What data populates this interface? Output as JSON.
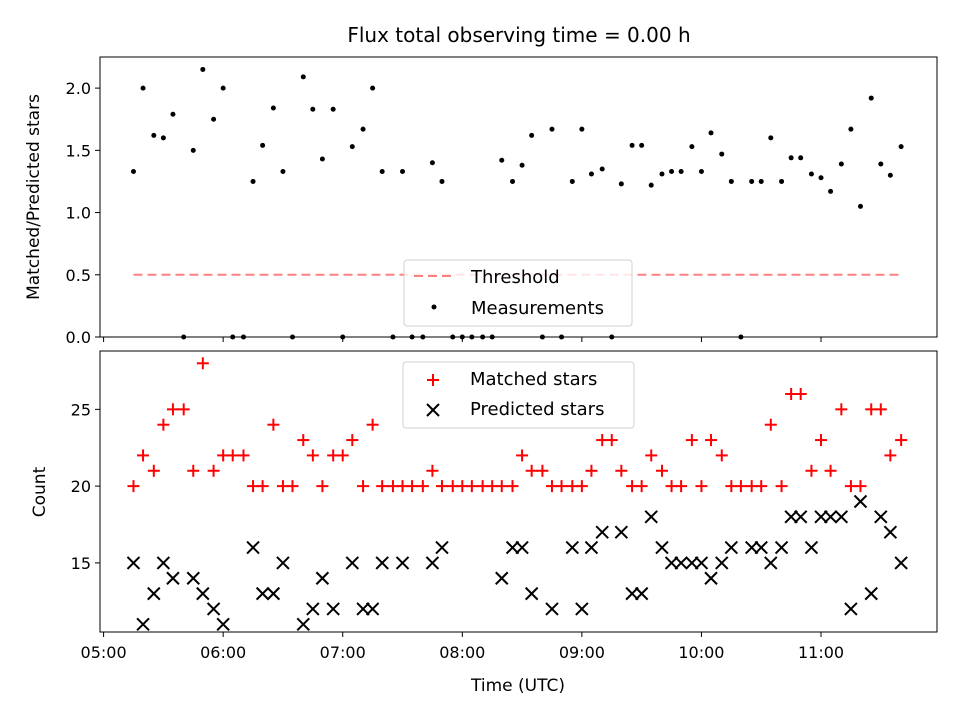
{
  "chart_data": {
    "type": "scatter",
    "title": "Flux total observing time = 0.00 h",
    "xlabel": "Time (UTC)",
    "x_ticks": [
      "05:00",
      "06:00",
      "07:00",
      "08:00",
      "09:00",
      "10:00",
      "11:00"
    ],
    "top": {
      "ylabel": "Matched/Predicted stars",
      "ylim": [
        0,
        2.25
      ],
      "y_ticks": [
        "0.0",
        "0.5",
        "1.0",
        "1.5",
        "2.0"
      ],
      "legend": [
        "Threshold",
        "Measurements"
      ],
      "legend_loc": "lower center",
      "threshold": 0.5,
      "threshold_color": "#ff8080",
      "x": [
        5.25,
        5.33,
        5.42,
        5.5,
        5.58,
        5.67,
        5.75,
        5.83,
        5.92,
        6.0,
        6.08,
        6.17,
        6.25,
        6.33,
        6.42,
        6.5,
        6.58,
        6.67,
        6.75,
        6.83,
        6.92,
        7.0,
        7.08,
        7.17,
        7.25,
        7.33,
        7.42,
        7.5,
        7.58,
        7.67,
        7.75,
        7.83,
        7.92,
        8.0,
        8.08,
        8.17,
        8.25,
        8.33,
        8.42,
        8.5,
        8.58,
        8.67,
        8.75,
        8.83,
        8.92,
        9.0,
        9.08,
        9.17,
        9.25,
        9.33,
        9.42,
        9.5,
        9.58,
        9.67,
        9.75,
        9.83,
        9.92,
        10.0,
        10.08,
        10.17,
        10.25,
        10.33,
        10.42,
        10.5,
        10.58,
        10.67,
        10.75,
        10.83,
        10.92,
        11.0,
        11.08,
        11.17,
        11.25,
        11.33,
        11.42,
        11.5,
        11.58,
        11.67
      ],
      "values": [
        1.33,
        2.0,
        1.62,
        1.6,
        1.79,
        0.0,
        1.5,
        2.15,
        1.75,
        2.0,
        0.0,
        0.0,
        1.25,
        1.54,
        1.84,
        1.33,
        0.0,
        2.09,
        1.83,
        1.43,
        1.83,
        0.0,
        1.53,
        1.67,
        2.0,
        1.33,
        0.0,
        1.33,
        0.0,
        0.0,
        1.4,
        1.25,
        0.0,
        0.0,
        0.0,
        0.0,
        0.0,
        1.42,
        1.25,
        1.38,
        1.62,
        0.0,
        1.67,
        0.0,
        1.25,
        1.67,
        1.31,
        1.35,
        0.0,
        1.23,
        1.54,
        1.54,
        1.22,
        1.31,
        1.33,
        1.33,
        1.53,
        1.33,
        1.64,
        1.47,
        1.25,
        0.0,
        1.25,
        1.25,
        1.6,
        1.25,
        1.44,
        1.44,
        1.31,
        1.28,
        1.17,
        1.39,
        1.67,
        1.05,
        1.92,
        1.39,
        1.3,
        1.53
      ]
    },
    "bottom": {
      "ylabel": "Count",
      "ylim": [
        10.5,
        28.8
      ],
      "y_ticks": [
        "15",
        "20",
        "25"
      ],
      "legend_loc": "upper center",
      "x": [
        5.25,
        5.33,
        5.42,
        5.5,
        5.58,
        5.67,
        5.75,
        5.83,
        5.92,
        6.0,
        6.08,
        6.17,
        6.25,
        6.33,
        6.42,
        6.5,
        6.58,
        6.67,
        6.75,
        6.83,
        6.92,
        7.0,
        7.08,
        7.17,
        7.25,
        7.33,
        7.42,
        7.5,
        7.58,
        7.67,
        7.75,
        7.83,
        7.92,
        8.0,
        8.08,
        8.17,
        8.25,
        8.33,
        8.42,
        8.5,
        8.58,
        8.67,
        8.75,
        8.83,
        8.92,
        9.0,
        9.08,
        9.17,
        9.25,
        9.33,
        9.42,
        9.5,
        9.58,
        9.67,
        9.75,
        9.83,
        9.92,
        10.0,
        10.08,
        10.17,
        10.25,
        10.33,
        10.42,
        10.5,
        10.58,
        10.67,
        10.75,
        10.83,
        10.92,
        11.0,
        11.08,
        11.17,
        11.25,
        11.33,
        11.42,
        11.5,
        11.58,
        11.67
      ],
      "series": [
        {
          "name": "Matched stars",
          "marker": "plus",
          "color": "#ff0000",
          "values": [
            20,
            22,
            21,
            24,
            25,
            25,
            21,
            28,
            21,
            22,
            22,
            22,
            20,
            20,
            24,
            20,
            20,
            23,
            22,
            20,
            22,
            22,
            23,
            20,
            24,
            20,
            20,
            20,
            20,
            20,
            21,
            20,
            20,
            20,
            20,
            20,
            20,
            20,
            20,
            22,
            21,
            21,
            20,
            20,
            20,
            20,
            21,
            23,
            23,
            21,
            20,
            20,
            22,
            21,
            20,
            20,
            23,
            20,
            23,
            22,
            20,
            20,
            20,
            20,
            24,
            20,
            26,
            26,
            21,
            23,
            21,
            25,
            20,
            20,
            25,
            25,
            22,
            23
          ]
        },
        {
          "name": "Predicted stars",
          "marker": "x",
          "color": "#000000",
          "values": [
            15,
            11,
            13,
            15,
            14,
            null,
            14,
            13,
            12,
            11,
            null,
            null,
            16,
            13,
            13,
            15,
            null,
            11,
            12,
            14,
            12,
            null,
            15,
            12,
            12,
            15,
            null,
            15,
            null,
            null,
            15,
            16,
            null,
            null,
            null,
            null,
            null,
            14,
            16,
            16,
            13,
            null,
            12,
            null,
            16,
            12,
            16,
            17,
            null,
            17,
            13,
            13,
            18,
            16,
            15,
            15,
            15,
            15,
            14,
            15,
            16,
            null,
            16,
            16,
            15,
            16,
            18,
            18,
            16,
            18,
            18,
            18,
            12,
            19,
            13,
            18,
            17,
            15
          ]
        }
      ]
    }
  }
}
